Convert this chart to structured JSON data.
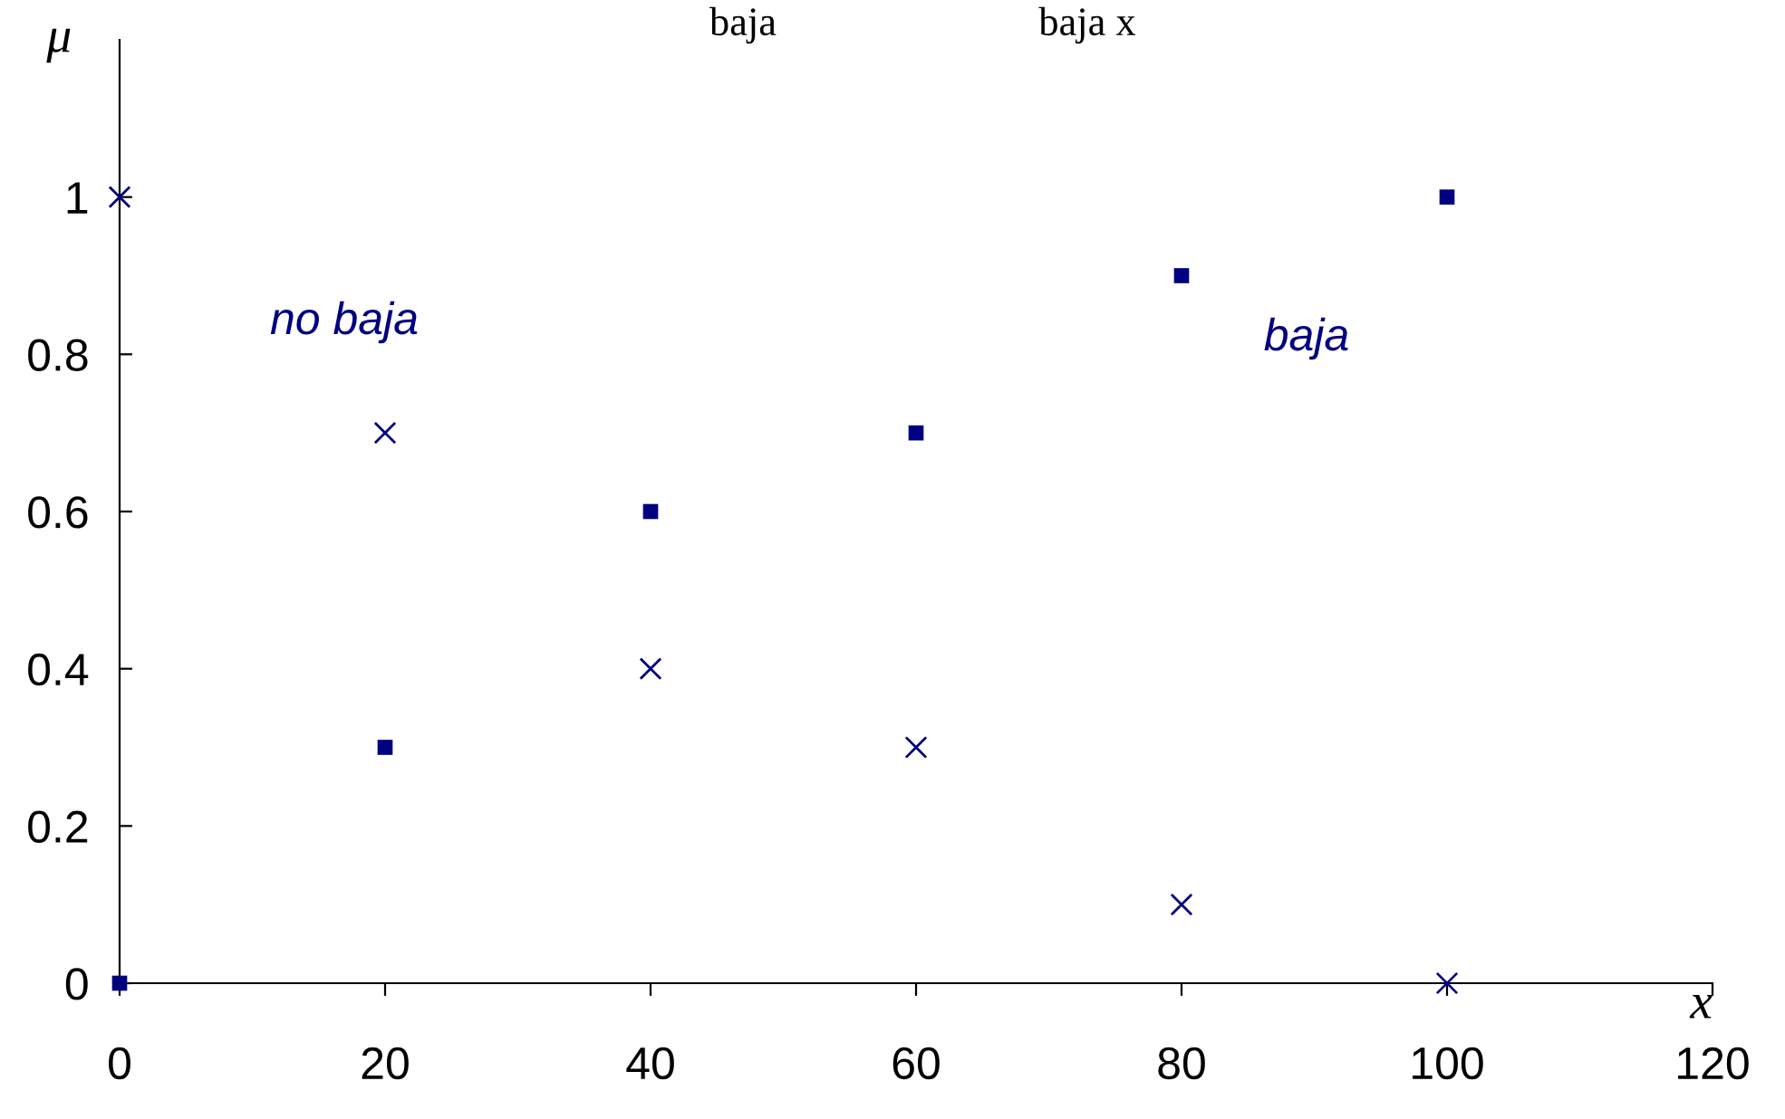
{
  "chart_data": {
    "type": "scatter",
    "xlabel": "x",
    "ylabel": "μ",
    "series": [
      {
        "name": null,
        "color": "#000080",
        "marker": "square",
        "x": [
          0,
          20,
          40,
          60,
          80,
          100
        ],
        "values": [
          0,
          0.3,
          0.6,
          0.7,
          0.9,
          1
        ]
      },
      {
        "name": null,
        "color": "#000080",
        "marker": "cross",
        "x": [
          0,
          20,
          40,
          60,
          80,
          100
        ],
        "values": [
          1,
          0.7,
          0.4,
          0.3,
          0.1,
          0
        ]
      }
    ],
    "annotations": [
      "no baja",
      "baja",
      "baja",
      "baja x"
    ],
    "xlim": [
      0,
      120
    ],
    "xticks": [
      0,
      20,
      40,
      60,
      80,
      100,
      120
    ],
    "ylim": [
      0,
      1.2
    ],
    "yticks": [
      0,
      0.2,
      0.4,
      0.6,
      0.8,
      1
    ],
    "grid": false,
    "legend": false
  }
}
